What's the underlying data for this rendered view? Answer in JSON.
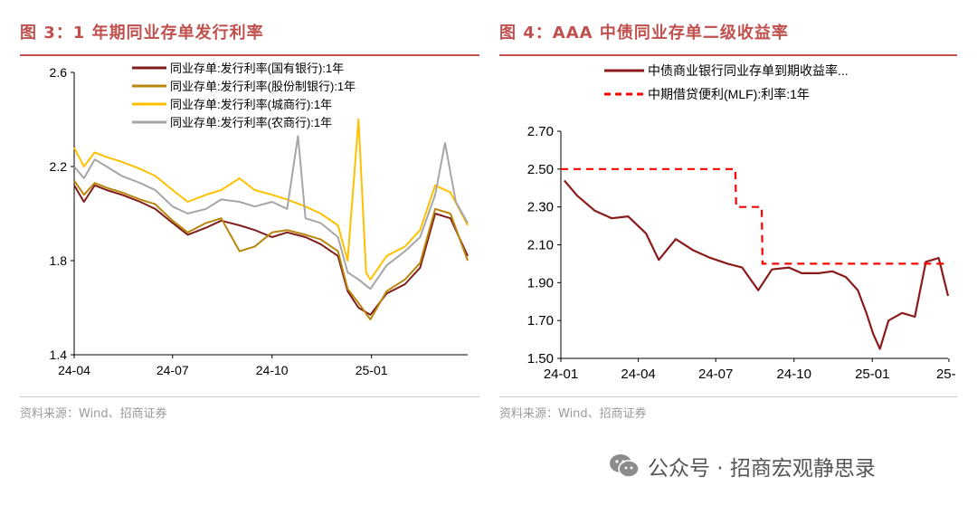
{
  "left": {
    "title": "图 3：1 年期同业存单发行利率",
    "source": "资料来源：Wind、招商证券"
  },
  "right": {
    "title": "图 4：AAA 中债同业存单二级收益率",
    "source": "资料来源：Wind、招商证券"
  },
  "watermark": {
    "icon": "wechat-icon",
    "text": "公众号 · 招商宏观静思录"
  },
  "colors": {
    "accent": "#c0504d",
    "state_owned": "#7f1d1d",
    "joint_stock": "#b8860b",
    "city": "#ffc000",
    "rural": "#a6a6a6",
    "yield": "#8b1a1a",
    "mlf": "#ff0000"
  },
  "chart_data": [
    {
      "type": "line",
      "title": "",
      "xlabel": "",
      "ylabel": "",
      "x_ticks": [
        "24-04",
        "24-07",
        "24-10",
        "25-01"
      ],
      "y_ticks": [
        "1.4",
        "1.8",
        "2.2",
        "2.6"
      ],
      "ylim": [
        1.4,
        2.6
      ],
      "grid": false,
      "legend_position": "top",
      "series": [
        {
          "name": "同业存单:发行利率(国有银行):1年",
          "color": "#7f1d1d",
          "x": [
            "2024-04-01",
            "2024-04-10",
            "2024-04-20",
            "2024-05-01",
            "2024-05-15",
            "2024-06-01",
            "2024-06-15",
            "2024-07-01",
            "2024-07-15",
            "2024-08-01",
            "2024-08-15",
            "2024-09-01",
            "2024-09-15",
            "2024-10-01",
            "2024-10-15",
            "2024-11-01",
            "2024-11-15",
            "2024-12-01",
            "2024-12-10",
            "2024-12-20",
            "2024-12-31",
            "2025-01-15",
            "2025-02-01",
            "2025-02-15",
            "2025-03-01",
            "2025-03-15",
            "2025-03-31"
          ],
          "values": [
            2.12,
            2.05,
            2.12,
            2.1,
            2.08,
            2.05,
            2.02,
            1.96,
            1.91,
            1.94,
            1.97,
            1.95,
            1.93,
            1.9,
            1.92,
            1.9,
            1.87,
            1.82,
            1.67,
            1.6,
            1.57,
            1.66,
            1.7,
            1.77,
            2.0,
            1.98,
            1.82
          ]
        },
        {
          "name": "同业存单:发行利率(股份制银行):1年",
          "color": "#b8860b",
          "x": [
            "2024-04-01",
            "2024-04-10",
            "2024-04-20",
            "2024-05-01",
            "2024-05-15",
            "2024-06-01",
            "2024-06-15",
            "2024-07-01",
            "2024-07-15",
            "2024-08-01",
            "2024-08-15",
            "2024-09-01",
            "2024-09-15",
            "2024-10-01",
            "2024-10-15",
            "2024-11-01",
            "2024-11-15",
            "2024-12-01",
            "2024-12-10",
            "2024-12-20",
            "2024-12-31",
            "2025-01-15",
            "2025-02-01",
            "2025-02-15",
            "2025-03-01",
            "2025-03-15",
            "2025-03-31"
          ],
          "values": [
            2.14,
            2.08,
            2.13,
            2.11,
            2.09,
            2.06,
            2.04,
            1.97,
            1.92,
            1.96,
            1.98,
            1.84,
            1.86,
            1.92,
            1.93,
            1.91,
            1.89,
            1.84,
            1.68,
            1.62,
            1.55,
            1.67,
            1.72,
            1.79,
            2.02,
            2.0,
            1.8
          ]
        },
        {
          "name": "同业存单:发行利率(城商行):1年",
          "color": "#ffc000",
          "x": [
            "2024-04-01",
            "2024-04-10",
            "2024-04-20",
            "2024-05-01",
            "2024-05-15",
            "2024-06-01",
            "2024-06-15",
            "2024-07-01",
            "2024-07-15",
            "2024-08-01",
            "2024-08-15",
            "2024-09-01",
            "2024-09-15",
            "2024-10-01",
            "2024-10-15",
            "2024-11-01",
            "2024-11-15",
            "2024-12-01",
            "2024-12-10",
            "2024-12-20",
            "2024-12-27",
            "2024-12-31",
            "2025-01-15",
            "2025-02-01",
            "2025-02-15",
            "2025-03-01",
            "2025-03-15",
            "2025-03-31"
          ],
          "values": [
            2.28,
            2.2,
            2.26,
            2.24,
            2.22,
            2.19,
            2.16,
            2.1,
            2.05,
            2.08,
            2.1,
            2.15,
            2.1,
            2.08,
            2.06,
            2.03,
            2.0,
            1.95,
            1.8,
            2.4,
            1.75,
            1.72,
            1.82,
            1.86,
            1.93,
            2.12,
            2.09,
            1.95
          ]
        },
        {
          "name": "同业存单:发行利率(农商行):1年",
          "color": "#a6a6a6",
          "x": [
            "2024-04-01",
            "2024-04-10",
            "2024-04-20",
            "2024-05-01",
            "2024-05-15",
            "2024-06-01",
            "2024-06-15",
            "2024-07-01",
            "2024-07-15",
            "2024-08-01",
            "2024-08-15",
            "2024-09-01",
            "2024-09-15",
            "2024-10-01",
            "2024-10-15",
            "2024-10-25",
            "2024-11-01",
            "2024-11-15",
            "2024-12-01",
            "2024-12-10",
            "2024-12-20",
            "2024-12-31",
            "2025-01-15",
            "2025-02-01",
            "2025-02-15",
            "2025-03-01",
            "2025-03-10",
            "2025-03-20",
            "2025-03-31"
          ],
          "values": [
            2.2,
            2.15,
            2.23,
            2.2,
            2.16,
            2.13,
            2.1,
            2.03,
            2.0,
            2.02,
            2.06,
            2.05,
            2.03,
            2.05,
            2.02,
            2.33,
            1.98,
            1.96,
            1.9,
            1.75,
            1.72,
            1.68,
            1.78,
            1.84,
            1.9,
            2.08,
            2.3,
            2.05,
            1.96
          ]
        }
      ]
    },
    {
      "type": "line",
      "title": "",
      "xlabel": "",
      "ylabel": "",
      "x_ticks": [
        "24-01",
        "24-04",
        "24-07",
        "24-10",
        "25-01",
        "25-"
      ],
      "y_ticks": [
        "1.50",
        "1.70",
        "1.90",
        "2.10",
        "2.30",
        "2.50",
        "2.70"
      ],
      "ylim": [
        1.5,
        2.7
      ],
      "grid": false,
      "legend_position": "top",
      "series": [
        {
          "name": "中债商业银行同业存单到期收益率...",
          "color": "#8b1a1a",
          "x": [
            "2024-01-05",
            "2024-01-20",
            "2024-02-10",
            "2024-03-01",
            "2024-03-20",
            "2024-04-10",
            "2024-04-25",
            "2024-05-15",
            "2024-06-05",
            "2024-06-25",
            "2024-07-15",
            "2024-08-01",
            "2024-08-20",
            "2024-09-05",
            "2024-09-25",
            "2024-10-10",
            "2024-10-30",
            "2024-11-15",
            "2024-12-01",
            "2024-12-15",
            "2024-12-25",
            "2025-01-02",
            "2025-01-10",
            "2025-01-20",
            "2025-02-05",
            "2025-02-20",
            "2025-03-05",
            "2025-03-20",
            "2025-03-31"
          ],
          "values": [
            2.44,
            2.36,
            2.28,
            2.24,
            2.25,
            2.16,
            2.02,
            2.13,
            2.07,
            2.03,
            2.0,
            1.98,
            1.86,
            1.97,
            1.98,
            1.95,
            1.95,
            1.96,
            1.93,
            1.86,
            1.74,
            1.63,
            1.55,
            1.7,
            1.74,
            1.72,
            2.01,
            2.03,
            1.83
          ]
        },
        {
          "name": "中期借贷便利(MLF):利率:1年",
          "color": "#ff0000",
          "x": [
            "2024-01-01",
            "2024-07-24",
            "2024-07-25",
            "2024-08-24",
            "2024-08-25",
            "2025-03-31"
          ],
          "values": [
            2.5,
            2.5,
            2.3,
            2.3,
            2.0,
            2.0
          ]
        }
      ]
    }
  ]
}
